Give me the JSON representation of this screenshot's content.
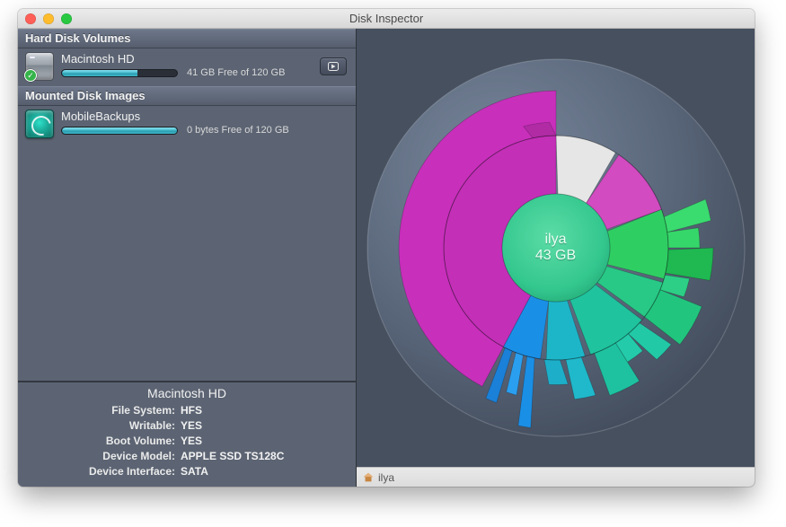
{
  "window": {
    "title": "Disk Inspector"
  },
  "sidebar": {
    "sections": [
      {
        "title": "Hard Disk Volumes",
        "iconType": "hd",
        "items": [
          {
            "name": "Macintosh HD",
            "freeText": "41 GB Free of 120 GB",
            "usedFraction": 0.66,
            "showCheck": true,
            "showPlayAction": true
          }
        ]
      },
      {
        "title": "Mounted Disk Images",
        "iconType": "tm",
        "items": [
          {
            "name": "MobileBackups",
            "freeText": "0 bytes Free of 120 GB",
            "usedFraction": 1.0,
            "showCheck": false,
            "showPlayAction": false
          }
        ]
      }
    ]
  },
  "infoPanel": {
    "title": "Macintosh HD",
    "rows": [
      {
        "label": "File System:",
        "value": "HFS"
      },
      {
        "label": "Writable:",
        "value": "YES"
      },
      {
        "label": "Boot Volume:",
        "value": "YES"
      },
      {
        "label": "Device Model:",
        "value": "APPLE SSD TS128C"
      },
      {
        "label": "Device Interface:",
        "value": "SATA"
      }
    ]
  },
  "sunburst": {
    "center": {
      "name": "ilya",
      "size": "43 GB",
      "fill": "#33c78e"
    },
    "discColor": "#5d6a7e",
    "discRadius": 210,
    "ring1": {
      "r0": 60,
      "r1": 125
    },
    "ring2": {
      "r0": 125,
      "r1": 175
    },
    "ring1Slices": [
      {
        "a0": 0,
        "a1": 34,
        "fill": "#e6e6e6"
      },
      {
        "a0": 34,
        "a1": 70,
        "fill": "#d24bc0"
      },
      {
        "a0": 70,
        "a1": 108,
        "fill": "#2fce63"
      },
      {
        "a0": 108,
        "a1": 130,
        "fill": "#28c986"
      },
      {
        "a0": 130,
        "a1": 165,
        "fill": "#1fc39e"
      },
      {
        "a0": 165,
        "a1": 188,
        "fill": "#1db6c8"
      },
      {
        "a0": 188,
        "a1": 208,
        "fill": "#1a8fe6"
      },
      {
        "a0": 208,
        "a1": 360,
        "fill": "#c32fb7"
      }
    ],
    "ring2Slices": [
      {
        "a0": 72,
        "a1": 82,
        "rExt": 1.0,
        "fill": "#3adb6f"
      },
      {
        "a0": 82,
        "a1": 90,
        "rExt": 0.7,
        "fill": "#36d76a"
      },
      {
        "a0": 90,
        "a1": 103,
        "rExt": 1.0,
        "fill": "#1fb851"
      },
      {
        "a0": 103,
        "a1": 112,
        "rExt": 0.55,
        "fill": "#2ccf85"
      },
      {
        "a0": 112,
        "a1": 128,
        "rExt": 1.0,
        "fill": "#22c57e"
      },
      {
        "a0": 130,
        "a1": 140,
        "rExt": 0.85,
        "fill": "#22c9a6"
      },
      {
        "a0": 140,
        "a1": 148,
        "rExt": 0.5,
        "fill": "#24cbaa"
      },
      {
        "a0": 148,
        "a1": 160,
        "rExt": 1.0,
        "fill": "#1ec2a0"
      },
      {
        "a0": 165,
        "a1": 175,
        "rExt": 0.9,
        "fill": "#1fb9cb"
      },
      {
        "a0": 175,
        "a1": 186,
        "rExt": 0.55,
        "fill": "#1dafc9"
      },
      {
        "a0": 188,
        "a1": 195,
        "rExt": 1.55,
        "fill": "#1a8fe6"
      },
      {
        "a0": 195,
        "a1": 201,
        "rExt": 0.9,
        "fill": "#2a9ff0"
      },
      {
        "a0": 201,
        "a1": 207,
        "rExt": 1.2,
        "fill": "#1a80d8"
      },
      {
        "a0": 208,
        "a1": 360,
        "rExt": 1.0,
        "fill": "#c82fbb"
      },
      {
        "a0": 345,
        "a1": 360,
        "rExt": 0.3,
        "fill": "#b12ba5"
      }
    ]
  },
  "pathbar": {
    "label": "ilya"
  }
}
